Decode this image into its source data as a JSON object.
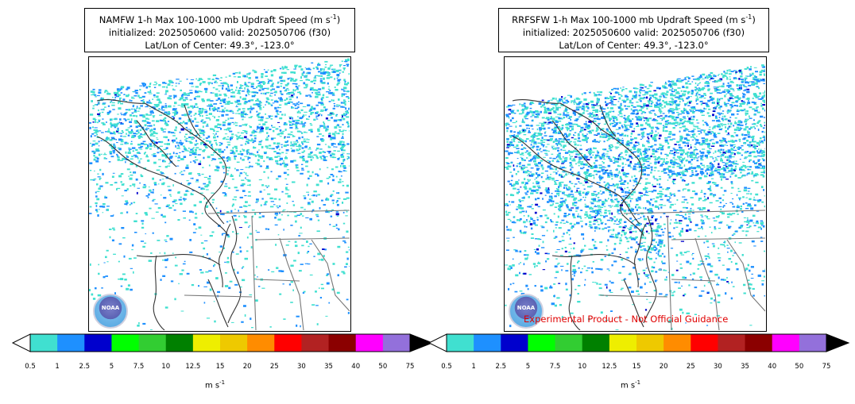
{
  "panels": [
    {
      "title_line1": "NAMFW 1-h Max 100-1000 mb Updraft Speed (m s",
      "title_sup": "-1",
      "title_close": ")",
      "title_line2": "initialized: 2025050600 valid: 2025050706 (f30)",
      "title_line3": "Lat/Lon of Center: 49.3°, -123.0°",
      "logo_text": "NOAA",
      "disclaimer": ""
    },
    {
      "title_line1": "RRFSFW 1-h Max 100-1000 mb Updraft Speed (m s",
      "title_sup": "-1",
      "title_close": ")",
      "title_line2": "initialized: 2025050600 valid: 2025050706 (f30)",
      "title_line3": "Lat/Lon of Center: 49.3°, -123.0°",
      "logo_text": "NOAA",
      "disclaimer": "Experimental Product - Not Official Guidance"
    }
  ],
  "colorbar": {
    "ticks": [
      "0.5",
      "1",
      "2.5",
      "5",
      "7.5",
      "10",
      "12.5",
      "15",
      "20",
      "25",
      "30",
      "35",
      "40",
      "50",
      "75"
    ],
    "colors": [
      "#40e0d0",
      "#1e90ff",
      "#0000cd",
      "#00ff00",
      "#32cd32",
      "#008000",
      "#eeee00",
      "#eec900",
      "#ff8c00",
      "#ff0000",
      "#b22222",
      "#8b0000",
      "#ff00ff",
      "#9370db"
    ],
    "label": "m s",
    "label_sup": "-1",
    "extend_low_color": "#ffffff",
    "extend_high_color": "#000000"
  },
  "colors": {
    "cyan": "#40e0d0",
    "blue": "#1e90ff",
    "dark_blue": "#0000cd",
    "coast": "#333333",
    "border": "#777777",
    "disclaimer": "#e00000"
  }
}
